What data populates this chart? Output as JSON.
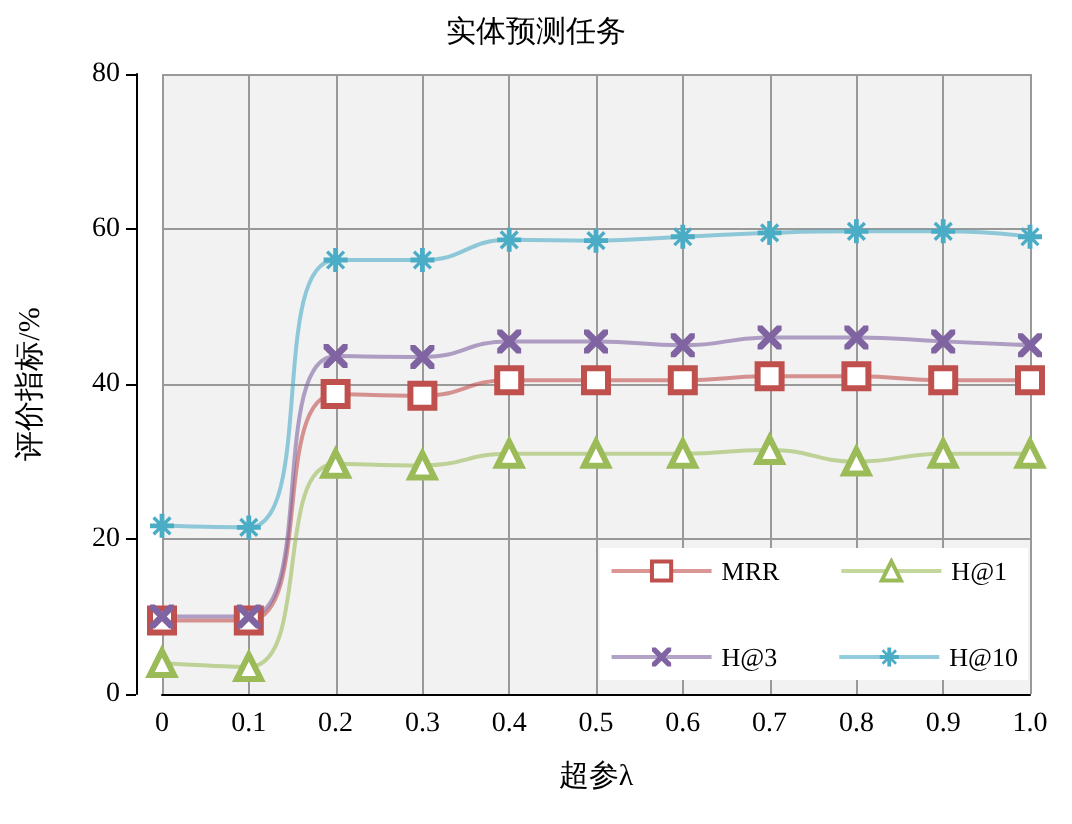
{
  "chart_data": {
    "type": "line",
    "title": "实体预测任务",
    "xlabel": "超参λ",
    "ylabel": "评价指标/%",
    "categories": [
      "0",
      "0.1",
      "0.2",
      "0.3",
      "0.4",
      "0.5",
      "0.6",
      "0.7",
      "0.8",
      "0.9",
      "1.0"
    ],
    "series": [
      {
        "name": "MRR",
        "color": "#c0504d",
        "marker": "square",
        "values": [
          9.5,
          9.5,
          38.7,
          38.5,
          40.5,
          40.5,
          40.5,
          41,
          41,
          40.5,
          40.5
        ]
      },
      {
        "name": "H@1",
        "color": "#9bbb59",
        "marker": "triangle",
        "values": [
          4,
          3.5,
          29.7,
          29.5,
          31,
          31,
          31,
          31.5,
          30,
          31,
          31
        ]
      },
      {
        "name": "H@3",
        "color": "#8064a2",
        "marker": "cross",
        "values": [
          10,
          10,
          43.6,
          43.5,
          45.5,
          45.5,
          45,
          46,
          46,
          45.5,
          45
        ]
      },
      {
        "name": "H@10",
        "color": "#4bacc6",
        "marker": "star",
        "values": [
          21.7,
          21.5,
          56,
          56,
          58.6,
          58.5,
          59,
          59.5,
          59.7,
          59.7,
          59
        ]
      }
    ],
    "ylim": [
      0,
      80
    ],
    "yticks": [
      0,
      20,
      40,
      60,
      80
    ],
    "grid": true,
    "legend": "bottom right",
    "line_style": "solid"
  }
}
